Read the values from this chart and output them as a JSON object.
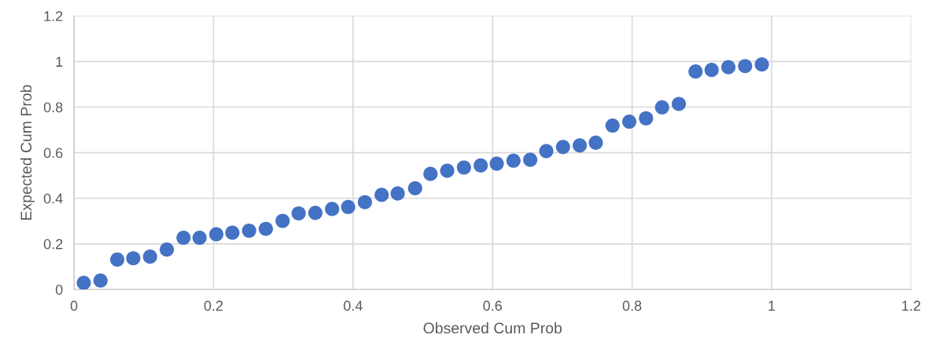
{
  "chart_data": {
    "type": "scatter",
    "xlabel": "Observed Cum Prob",
    "ylabel": "Expected Cum Prob",
    "x": [
      0.014,
      0.038,
      0.062,
      0.085,
      0.109,
      0.133,
      0.157,
      0.18,
      0.204,
      0.227,
      0.251,
      0.275,
      0.299,
      0.322,
      0.346,
      0.37,
      0.393,
      0.417,
      0.441,
      0.464,
      0.489,
      0.511,
      0.535,
      0.559,
      0.583,
      0.606,
      0.63,
      0.654,
      0.677,
      0.701,
      0.725,
      0.748,
      0.772,
      0.796,
      0.82,
      0.843,
      0.867,
      0.891,
      0.914,
      0.938,
      0.962,
      0.986
    ],
    "series": [
      {
        "color": "#4472c4",
        "values": [
          0.029,
          0.039,
          0.131,
          0.137,
          0.144,
          0.175,
          0.227,
          0.227,
          0.242,
          0.249,
          0.258,
          0.266,
          0.301,
          0.334,
          0.336,
          0.353,
          0.362,
          0.383,
          0.415,
          0.421,
          0.444,
          0.507,
          0.521,
          0.535,
          0.544,
          0.552,
          0.565,
          0.569,
          0.607,
          0.625,
          0.632,
          0.644,
          0.719,
          0.736,
          0.751,
          0.799,
          0.814,
          0.956,
          0.963,
          0.975,
          0.98,
          0.987
        ]
      }
    ],
    "xlim": [
      0,
      1.2
    ],
    "ylim": [
      0,
      1.2
    ],
    "xticks": [
      0,
      0.2,
      0.4,
      0.6,
      0.8,
      1,
      1.2
    ],
    "yticks": [
      0,
      0.2,
      0.4,
      0.6,
      0.8,
      1,
      1.2
    ],
    "grid": true,
    "marker": "circle",
    "legend": false
  }
}
